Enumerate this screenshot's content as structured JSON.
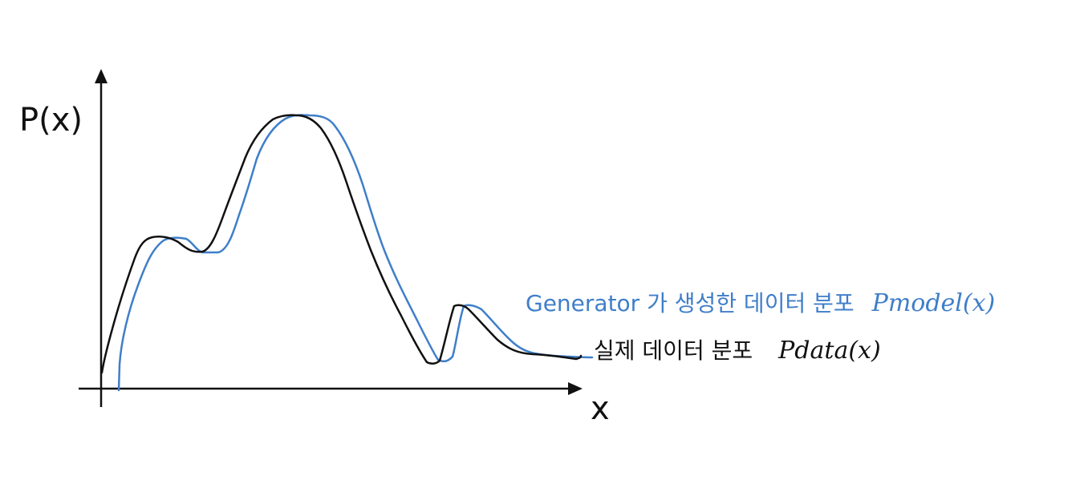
{
  "y_axis_label": "P(x)",
  "x_axis_label": "x",
  "legend": {
    "model": {
      "text": "Generator 가 생성한 데이터 분포",
      "math": "Pmodel(x)",
      "color": "#3f7ec9"
    },
    "data": {
      "text": "실제 데이터 분포",
      "math": "Pdata(x)",
      "color": "#111111"
    }
  },
  "colors": {
    "axis": "#111111",
    "model_curve": "#3f7ec9",
    "data_curve": "#111111"
  }
}
